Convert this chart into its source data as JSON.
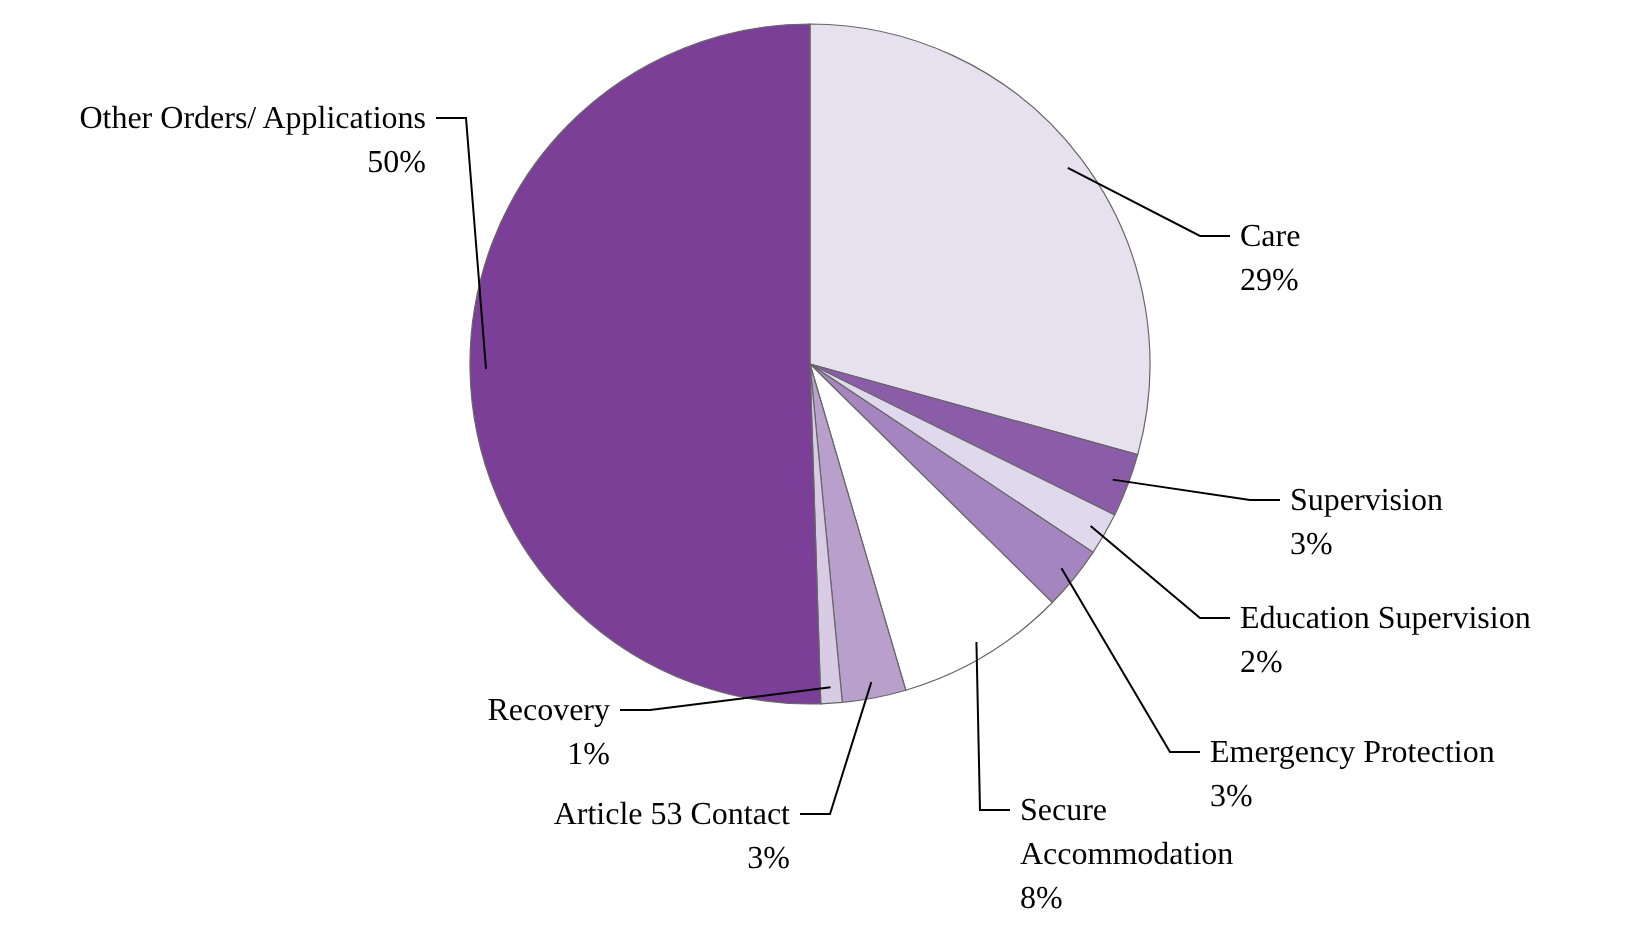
{
  "chart_data": {
    "type": "pie",
    "categories": [
      "Care",
      "Supervision",
      "Education Supervision",
      "Emergency Protection",
      "Secure Accommodation",
      "Article 53 Contact",
      "Recovery",
      "Other Orders/ Applications"
    ],
    "values": [
      29,
      3,
      2,
      3,
      8,
      3,
      1,
      50
    ],
    "value_labels": [
      "29%",
      "3%",
      "2%",
      "3%",
      "8%",
      "3%",
      "1%",
      "50%"
    ],
    "colors": [
      "#e6e0ef",
      "#8b5ca8",
      "#e0d8ec",
      "#a585c0",
      "#ffffff",
      "#b9a0cc",
      "#d8cce4",
      "#7b3f98"
    ]
  }
}
